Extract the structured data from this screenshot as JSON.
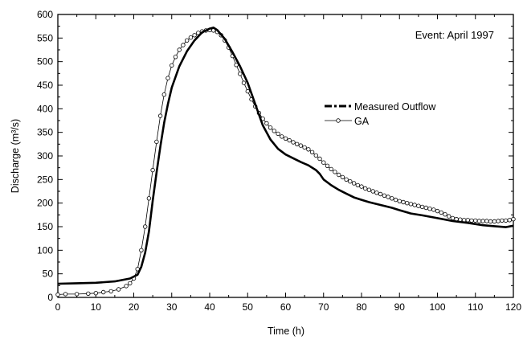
{
  "chart_data": {
    "type": "line",
    "annotation": "Event: April 1997",
    "xlabel": "Time (h)",
    "ylabel": "Discharge (m³/s)",
    "xlim": [
      0,
      120
    ],
    "ylim": [
      0,
      600
    ],
    "x_ticks": [
      0,
      10,
      20,
      30,
      40,
      50,
      60,
      70,
      80,
      90,
      100,
      110,
      120
    ],
    "y_ticks": [
      0,
      50,
      100,
      150,
      200,
      250,
      300,
      350,
      400,
      450,
      500,
      550,
      600
    ],
    "grid": false,
    "legend_position": "right-middle",
    "series": [
      {
        "name": "Measured Outflow",
        "style": "thick-solid",
        "color": "#000000",
        "points": [
          [
            0,
            29
          ],
          [
            5,
            30
          ],
          [
            10,
            31
          ],
          [
            15,
            34
          ],
          [
            19,
            40
          ],
          [
            21,
            48
          ],
          [
            22,
            65
          ],
          [
            23,
            95
          ],
          [
            24,
            140
          ],
          [
            25,
            205
          ],
          [
            26,
            265
          ],
          [
            27,
            320
          ],
          [
            28,
            370
          ],
          [
            29,
            410
          ],
          [
            30,
            445
          ],
          [
            32,
            490
          ],
          [
            34,
            522
          ],
          [
            36,
            545
          ],
          [
            38,
            562
          ],
          [
            40,
            570
          ],
          [
            41,
            572
          ],
          [
            42,
            567
          ],
          [
            44,
            548
          ],
          [
            46,
            520
          ],
          [
            48,
            490
          ],
          [
            50,
            455
          ],
          [
            52,
            410
          ],
          [
            54,
            365
          ],
          [
            56,
            335
          ],
          [
            58,
            315
          ],
          [
            60,
            303
          ],
          [
            62,
            295
          ],
          [
            64,
            287
          ],
          [
            66,
            280
          ],
          [
            68,
            270
          ],
          [
            69,
            262
          ],
          [
            70,
            250
          ],
          [
            72,
            238
          ],
          [
            74,
            228
          ],
          [
            76,
            220
          ],
          [
            78,
            212
          ],
          [
            80,
            207
          ],
          [
            82,
            202
          ],
          [
            85,
            196
          ],
          [
            88,
            190
          ],
          [
            90,
            185
          ],
          [
            93,
            178
          ],
          [
            96,
            174
          ],
          [
            100,
            168
          ],
          [
            104,
            162
          ],
          [
            108,
            158
          ],
          [
            112,
            153
          ],
          [
            115,
            151
          ],
          [
            118,
            149
          ],
          [
            120,
            152
          ]
        ]
      },
      {
        "name": "GA",
        "style": "thin-line-open-circles",
        "color": "#000000",
        "points": [
          [
            0,
            6
          ],
          [
            2,
            7
          ],
          [
            5,
            7
          ],
          [
            8,
            8
          ],
          [
            10,
            9
          ],
          [
            12,
            11
          ],
          [
            14,
            13
          ],
          [
            16,
            17
          ],
          [
            18,
            24
          ],
          [
            19,
            30
          ],
          [
            20,
            40
          ],
          [
            21,
            60
          ],
          [
            22,
            100
          ],
          [
            23,
            150
          ],
          [
            24,
            210
          ],
          [
            25,
            270
          ],
          [
            26,
            330
          ],
          [
            27,
            385
          ],
          [
            28,
            430
          ],
          [
            29,
            465
          ],
          [
            30,
            492
          ],
          [
            31,
            510
          ],
          [
            32,
            525
          ],
          [
            33,
            535
          ],
          [
            34,
            545
          ],
          [
            35,
            551
          ],
          [
            36,
            556
          ],
          [
            37,
            561
          ],
          [
            38,
            564
          ],
          [
            39,
            566
          ],
          [
            40,
            567
          ],
          [
            41,
            566
          ],
          [
            42,
            563
          ],
          [
            43,
            556
          ],
          [
            44,
            545
          ],
          [
            45,
            530
          ],
          [
            46,
            512
          ],
          [
            47,
            493
          ],
          [
            48,
            474
          ],
          [
            49,
            455
          ],
          [
            50,
            437
          ],
          [
            51,
            420
          ],
          [
            52,
            405
          ],
          [
            53,
            391
          ],
          [
            54,
            379
          ],
          [
            55,
            369
          ],
          [
            56,
            360
          ],
          [
            57,
            353
          ],
          [
            58,
            347
          ],
          [
            59,
            341
          ],
          [
            60,
            337
          ],
          [
            61,
            333
          ],
          [
            62,
            329
          ],
          [
            63,
            325
          ],
          [
            64,
            322
          ],
          [
            65,
            318
          ],
          [
            66,
            314
          ],
          [
            67,
            308
          ],
          [
            68,
            301
          ],
          [
            69,
            294
          ],
          [
            70,
            286
          ],
          [
            71,
            279
          ],
          [
            72,
            272
          ],
          [
            73,
            266
          ],
          [
            74,
            260
          ],
          [
            75,
            255
          ],
          [
            76,
            250
          ],
          [
            77,
            246
          ],
          [
            78,
            242
          ],
          [
            79,
            238
          ],
          [
            80,
            235
          ],
          [
            81,
            231
          ],
          [
            82,
            228
          ],
          [
            83,
            225
          ],
          [
            84,
            222
          ],
          [
            85,
            219
          ],
          [
            86,
            216
          ],
          [
            87,
            213
          ],
          [
            88,
            210
          ],
          [
            89,
            207
          ],
          [
            90,
            204
          ],
          [
            91,
            202
          ],
          [
            92,
            200
          ],
          [
            93,
            198
          ],
          [
            94,
            196
          ],
          [
            95,
            194
          ],
          [
            96,
            192
          ],
          [
            97,
            190
          ],
          [
            98,
            188
          ],
          [
            99,
            186
          ],
          [
            100,
            183
          ],
          [
            101,
            180
          ],
          [
            102,
            176
          ],
          [
            103,
            172
          ],
          [
            104,
            168
          ],
          [
            105,
            166
          ],
          [
            106,
            165
          ],
          [
            107,
            164
          ],
          [
            108,
            164
          ],
          [
            109,
            163
          ],
          [
            110,
            163
          ],
          [
            111,
            162
          ],
          [
            112,
            162
          ],
          [
            113,
            162
          ],
          [
            114,
            161
          ],
          [
            115,
            161
          ],
          [
            116,
            162
          ],
          [
            117,
            163
          ],
          [
            118,
            163
          ],
          [
            119,
            164
          ],
          [
            120,
            166
          ]
        ]
      }
    ]
  }
}
